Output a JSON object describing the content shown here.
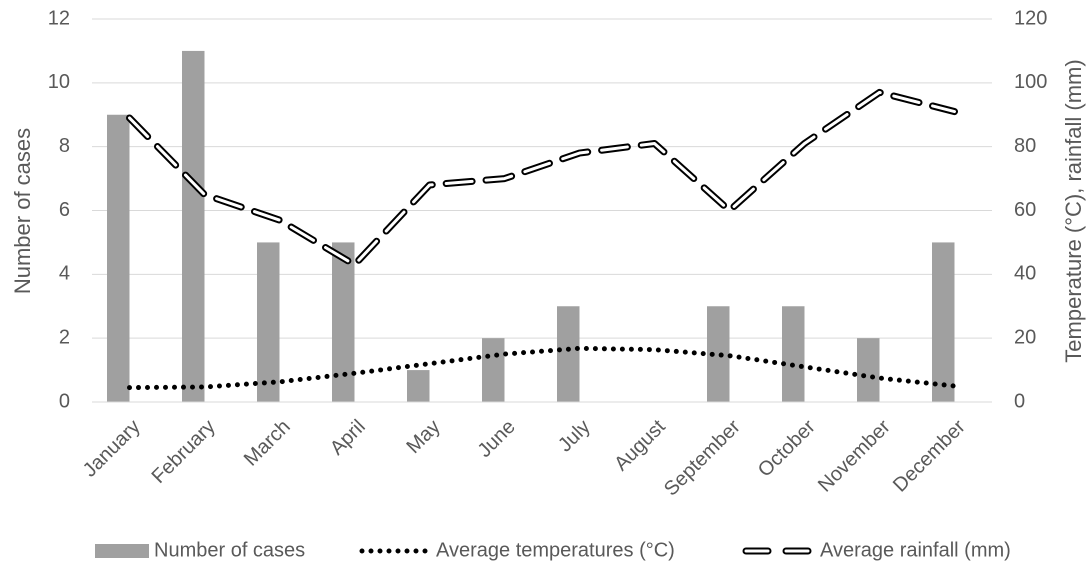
{
  "chart_data": {
    "type": "bar_line",
    "categories": [
      "January",
      "February",
      "March",
      "April",
      "May",
      "June",
      "July",
      "August",
      "September",
      "October",
      "November",
      "December"
    ],
    "series": [
      {
        "name": "Number of cases",
        "type": "bar",
        "color": "#a0a0a0",
        "axis": "y",
        "values": [
          9,
          11,
          5,
          5,
          1,
          2,
          3,
          0,
          3,
          3,
          2,
          5
        ]
      },
      {
        "name": "Average temperatures (°C)",
        "type": "line",
        "style": "dotted",
        "color": "#000000",
        "axis": "y2",
        "values": [
          4.5,
          4.7,
          6.3,
          9,
          12,
          15,
          16.8,
          16.4,
          14.5,
          11,
          7.5,
          5
        ]
      },
      {
        "name": "Average rainfall (mm)",
        "type": "line",
        "style": "dashed",
        "color": "#000000",
        "axis": "y2",
        "values": [
          89,
          65,
          57,
          43,
          68,
          70,
          78,
          81,
          60,
          81,
          97,
          91
        ]
      }
    ],
    "ylabel": "Number of cases",
    "y2label": "Temperature (°C), rainfall (mm)",
    "ylim": [
      0,
      12
    ],
    "yticks": [
      0,
      2,
      4,
      6,
      8,
      10,
      12
    ],
    "y2lim": [
      0,
      120
    ],
    "y2ticks": [
      0,
      20,
      40,
      60,
      80,
      100,
      120
    ],
    "grid": true,
    "legend": "bottom"
  }
}
